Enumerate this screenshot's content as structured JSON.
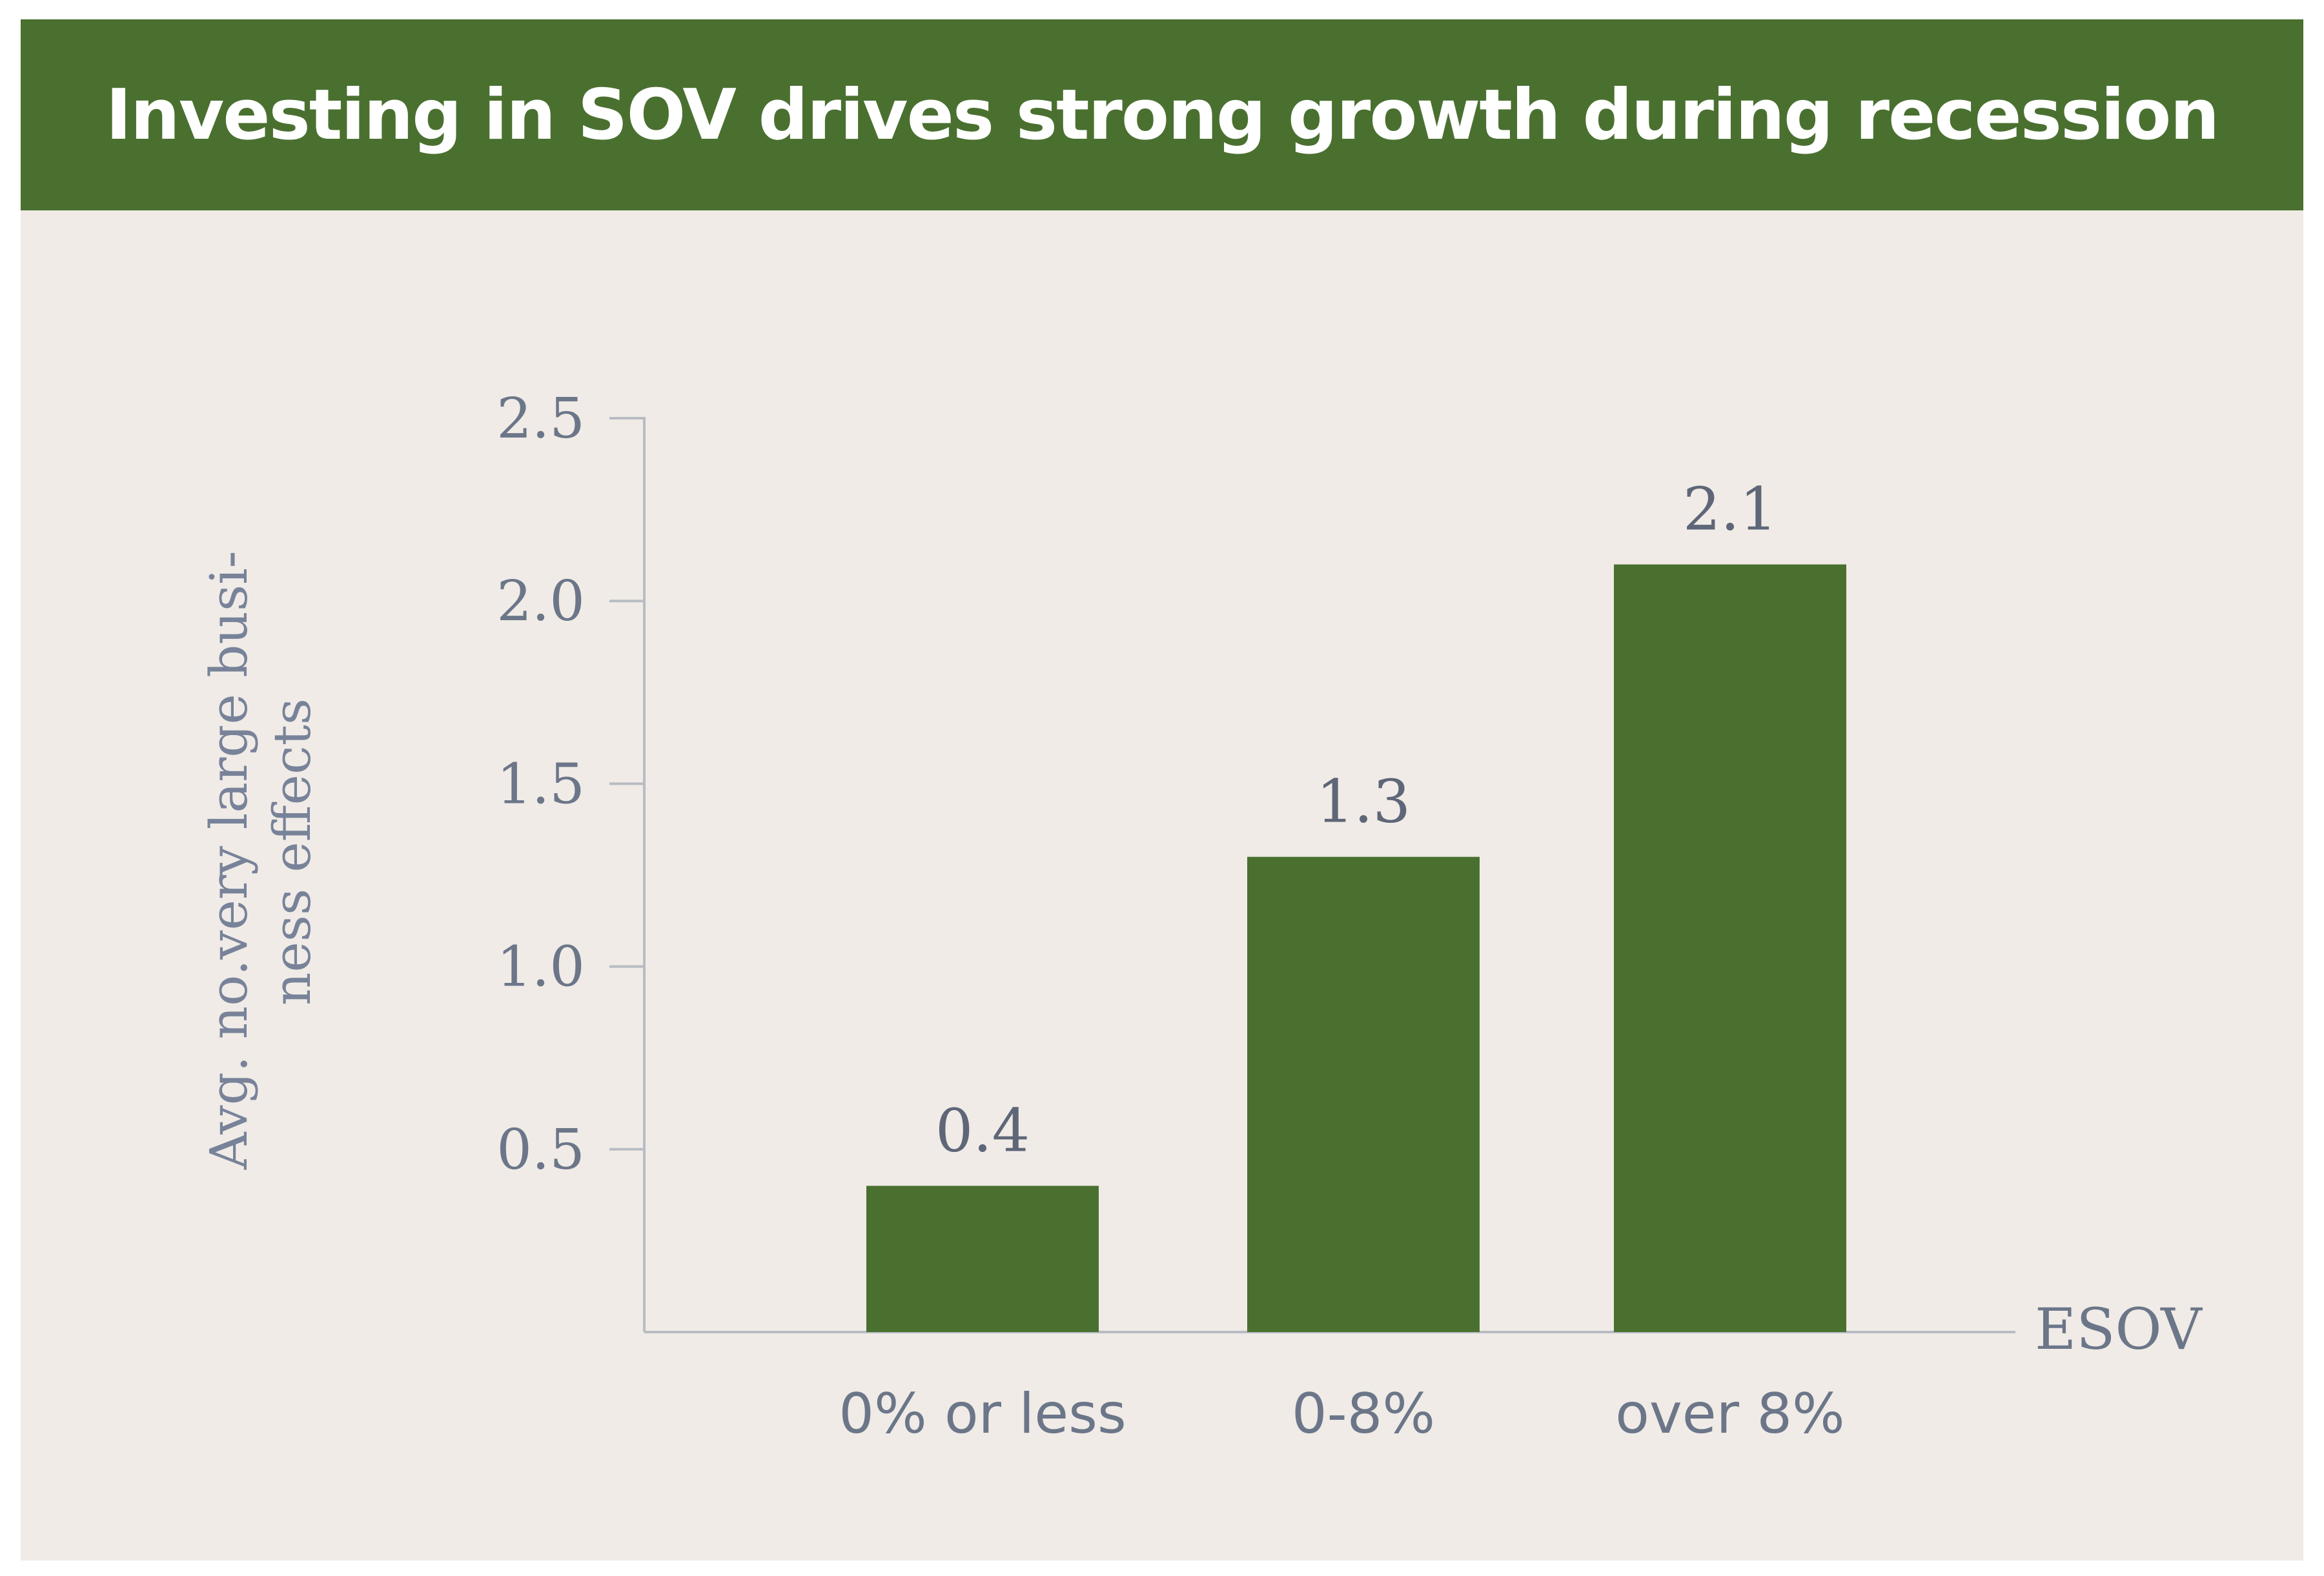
{
  "colors": {
    "title_bg": "#4a7030",
    "bar": "#4a7030",
    "panel_bg": "#f0ebe6",
    "axis": "#b8bcc4",
    "text": "#6c7689"
  },
  "chart_data": {
    "type": "bar",
    "title": "Investing in SOV drives strong growth during recession",
    "categories": [
      "0% or less",
      "0-8%",
      "over 8%"
    ],
    "values": [
      0.4,
      1.3,
      2.1
    ],
    "value_labels": [
      "0.4",
      "1.3",
      "2.1"
    ],
    "xlabel": "ESOV",
    "ylabel_lines": [
      "Avg. no.very large busi-",
      "ness effects"
    ],
    "yticks": [
      0.5,
      1.0,
      1.5,
      2.0,
      2.5
    ],
    "ytick_labels": [
      "0.5",
      "1.0",
      "1.5",
      "2.0",
      "2.5"
    ],
    "ylim": [
      0,
      2.5
    ],
    "grid": false,
    "legend": "none"
  }
}
